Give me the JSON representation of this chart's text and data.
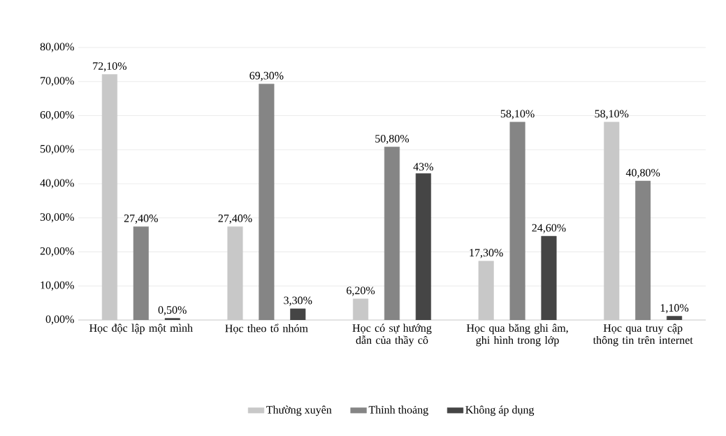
{
  "chart_data": {
    "type": "bar",
    "categories": [
      "Học độc lập một mình",
      "Học theo tổ nhóm",
      "Học có sự hướng dẫn của thầy cô",
      "Học qua băng ghi âm, ghi hình trong lớp",
      "Học qua truy cập thông tin trên internet"
    ],
    "series": [
      {
        "name": "Thường xuyên",
        "color": "#c8c8c8",
        "values": [
          72.1,
          27.4,
          6.2,
          17.3,
          58.1
        ],
        "value_labels": [
          "72,10%",
          "27,40%",
          "6,20%",
          "17,30%",
          "58,10%"
        ]
      },
      {
        "name": "Thỉnh thoảng",
        "color": "#858585",
        "values": [
          27.4,
          69.3,
          50.8,
          58.1,
          40.8
        ],
        "value_labels": [
          "27,40%",
          "69,30%",
          "50,80%",
          "58,10%",
          "40,80%"
        ]
      },
      {
        "name": "Không áp dụng",
        "color": "#454545",
        "values": [
          0.5,
          3.3,
          43,
          24.6,
          1.1
        ],
        "value_labels": [
          "0,50%",
          "3,30%",
          "43%",
          "24,60%",
          "1,10%"
        ]
      }
    ],
    "ylim": [
      0,
      80
    ],
    "yticks": [
      {
        "value": 0,
        "label": "0,00%"
      },
      {
        "value": 10,
        "label": "10,00%"
      },
      {
        "value": 20,
        "label": "20,00%"
      },
      {
        "value": 30,
        "label": "30,00%"
      },
      {
        "value": 40,
        "label": "40,00%"
      },
      {
        "value": 50,
        "label": "50,00%"
      },
      {
        "value": 60,
        "label": "60,00%"
      },
      {
        "value": 70,
        "label": "70,00%"
      },
      {
        "value": 80,
        "label": "80,00%"
      }
    ],
    "grid": "y",
    "legend": "bottom"
  }
}
